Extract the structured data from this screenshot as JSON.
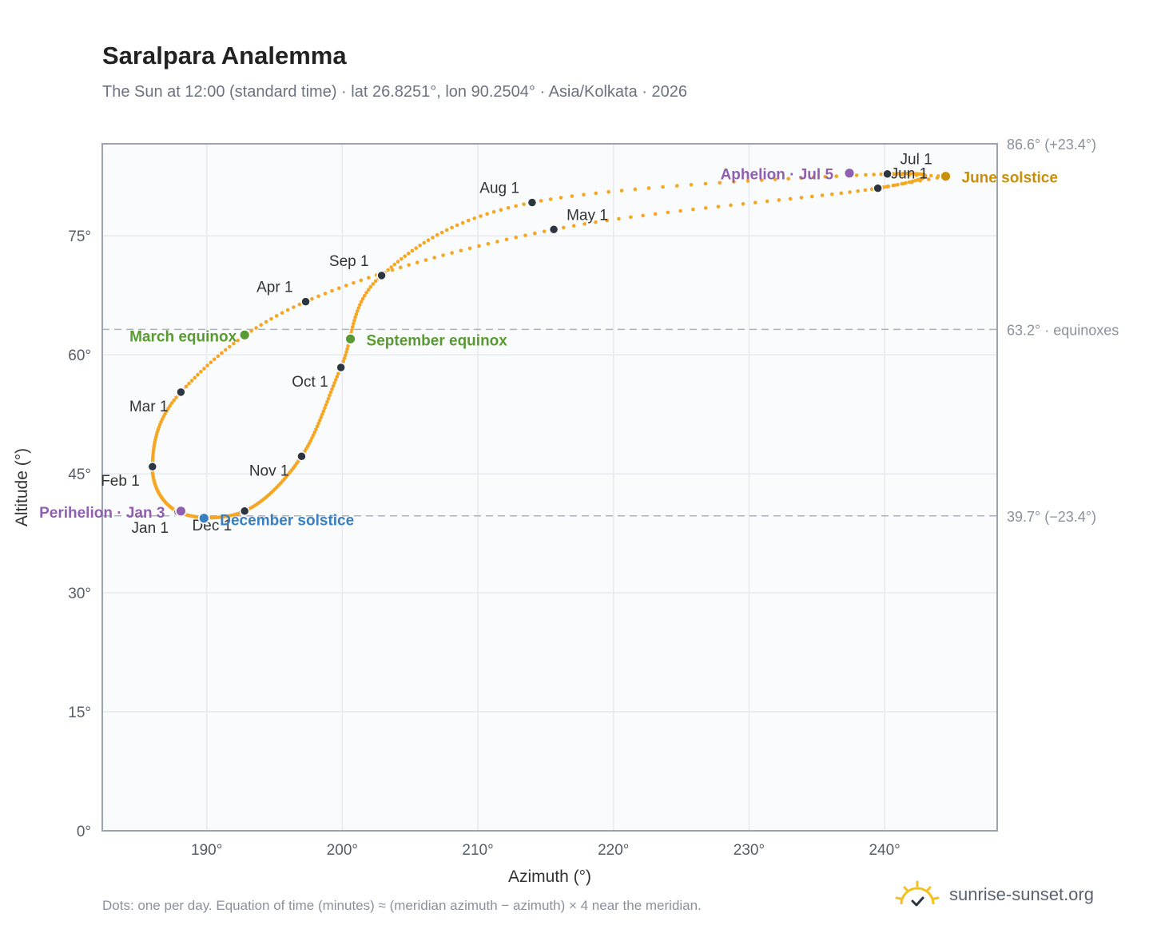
{
  "header": {
    "title": "Saralpara Analemma",
    "subtitle": "The Sun at 12:00 (standard time) · lat 26.8251°, lon 90.2504° · Asia/Kolkata · 2026"
  },
  "footer": {
    "note": "Dots: one per day. Equation of time (minutes) ≈ (meridian azimuth − azimuth) × 4 near the meridian.",
    "brand": "sunrise-sunset.org",
    "brand_icon": "sun-check-icon"
  },
  "colors": {
    "curve": "#f5a623",
    "month_marker": "#2d3540",
    "equinox": "#5a9a32",
    "december_solstice": "#3a7fc0",
    "june_solstice": "#c8900a",
    "apsis": "#9060b0",
    "reference_line": "#aab2bd",
    "plot_bg": "#f9fbfd",
    "grid": "#e6e9ee"
  },
  "chart_data": {
    "type": "scatter",
    "title": "Saralpara Analemma",
    "xlabel": "Azimuth (°)",
    "ylabel": "Altitude (°)",
    "xlim": [
      182.3,
      248.3
    ],
    "ylim": [
      0,
      86.6
    ],
    "x_ticks": [
      190,
      200,
      210,
      220,
      230,
      240
    ],
    "x_tick_labels": [
      "190°",
      "200°",
      "210°",
      "220°",
      "230°",
      "240°"
    ],
    "y_ticks": [
      0,
      15,
      30,
      45,
      60,
      75
    ],
    "y_tick_labels": [
      "0°",
      "15°",
      "30°",
      "45°",
      "60°",
      "75°"
    ],
    "grid": true,
    "reference_lines": [
      {
        "y": 86.6,
        "label": "86.6° (+23.4°)"
      },
      {
        "y": 63.2,
        "label": "63.2° · equinoxes"
      },
      {
        "y": 39.7,
        "label": "39.7° (−23.4°)"
      }
    ],
    "month_points": [
      {
        "label": "Jan 1",
        "az": 187.9,
        "alt": 40.2
      },
      {
        "label": "Feb 1",
        "az": 186.0,
        "alt": 45.9
      },
      {
        "label": "Mar 1",
        "az": 188.1,
        "alt": 55.3
      },
      {
        "label": "Apr 1",
        "az": 197.3,
        "alt": 66.7
      },
      {
        "label": "May 1",
        "az": 215.6,
        "alt": 75.8
      },
      {
        "label": "Jun 1",
        "az": 239.5,
        "alt": 81.0
      },
      {
        "label": "Jul 1",
        "az": 240.2,
        "alt": 82.8
      },
      {
        "label": "Aug 1",
        "az": 214.0,
        "alt": 79.2
      },
      {
        "label": "Sep 1",
        "az": 202.9,
        "alt": 70.0
      },
      {
        "label": "Oct 1",
        "az": 199.9,
        "alt": 58.4
      },
      {
        "label": "Nov 1",
        "az": 197.0,
        "alt": 47.2
      },
      {
        "label": "Dec 1",
        "az": 192.8,
        "alt": 40.3
      }
    ],
    "events": [
      {
        "label": "March equinox",
        "az": 192.8,
        "alt": 62.5
      },
      {
        "label": "September equinox",
        "az": 200.6,
        "alt": 62.0
      },
      {
        "label": "June solstice",
        "az": 244.5,
        "alt": 82.5
      },
      {
        "label": "December solstice",
        "az": 189.8,
        "alt": 39.4
      },
      {
        "label": "Perihelion · Jan 3",
        "az": 188.1,
        "alt": 40.3
      },
      {
        "label": "Aphelion · Jul 5",
        "az": 237.4,
        "alt": 82.9
      }
    ]
  }
}
